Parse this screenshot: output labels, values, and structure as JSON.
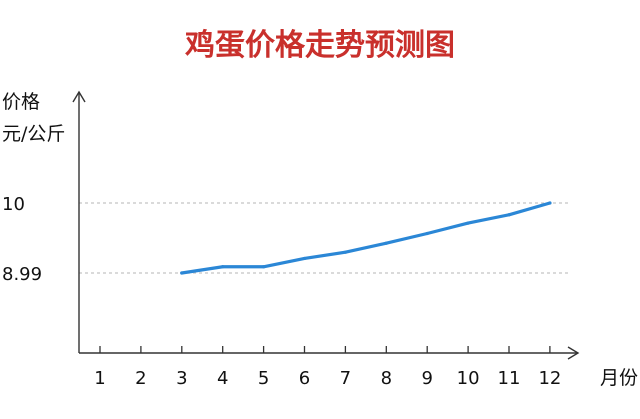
{
  "chart_data": {
    "type": "line",
    "title": "鸡蛋价格走势预测图",
    "ylabel_line1": "价格",
    "ylabel_line2": "元/公斤",
    "xlabel": "月份",
    "categories": [
      "1",
      "2",
      "3",
      "4",
      "5",
      "6",
      "7",
      "8",
      "9",
      "10",
      "11",
      "12"
    ],
    "y_tick_labels": [
      "10",
      "8.99"
    ],
    "y_tick_values": [
      10,
      8.99
    ],
    "series": [
      {
        "x": [
          3,
          4,
          5,
          6,
          7,
          8,
          9,
          10,
          11,
          12
        ],
        "values": [
          8.99,
          9.08,
          9.08,
          9.2,
          9.29,
          9.42,
          9.56,
          9.71,
          9.83,
          10
        ]
      }
    ],
    "line_color": "#2b87d6",
    "grid": "dashed reference lines at labeled y ticks",
    "title_color": "#c9302c"
  }
}
